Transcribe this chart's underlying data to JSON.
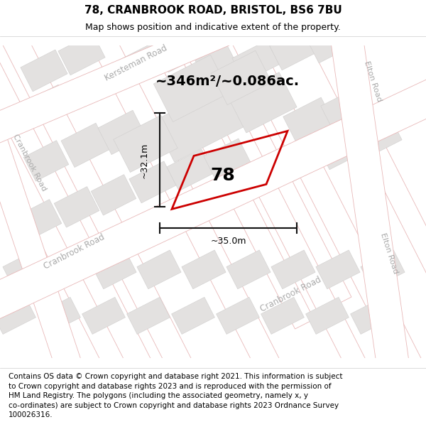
{
  "title": "78, CRANBROOK ROAD, BRISTOL, BS6 7BU",
  "subtitle": "Map shows position and indicative extent of the property.",
  "footer": "Contains OS data © Crown copyright and database right 2021. This information is subject\nto Crown copyright and database rights 2023 and is reproduced with the permission of\nHM Land Registry. The polygons (including the associated geometry, namely x, y\nco-ordinates) are subject to Crown copyright and database rights 2023 Ordnance Survey\n100026316.",
  "area_label": "~346m²/~0.086ac.",
  "width_label": "~35.0m",
  "height_label": "~32.1m",
  "property_number": "78",
  "map_bg": "#f2f0ef",
  "road_fill": "#ffffff",
  "road_edge": "#e8b8b8",
  "block_color": "#e3e1e0",
  "block_edge": "#d0cecd",
  "road_label_color": "#aaaaaa",
  "property_edge": "#cc0000",
  "dim_color": "#111111",
  "title_fontsize": 11,
  "subtitle_fontsize": 9,
  "footer_fontsize": 7.5,
  "area_fontsize": 14,
  "dim_fontsize": 9,
  "prop_label_fontsize": 18
}
